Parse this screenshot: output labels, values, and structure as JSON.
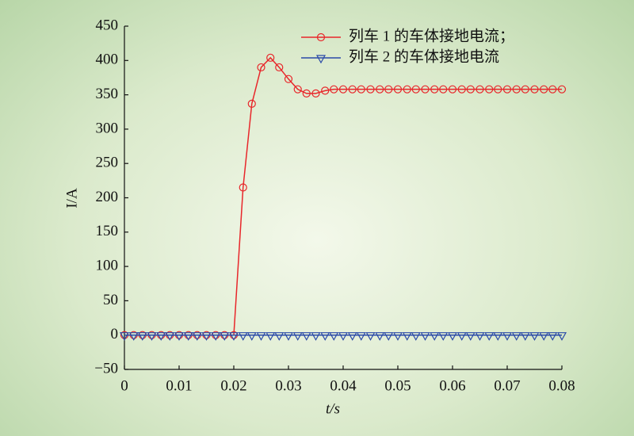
{
  "chart_data": {
    "type": "line",
    "x_label": "t/s",
    "y_label": "I/A",
    "x": [
      0,
      0.0017,
      0.0033,
      0.005,
      0.0067,
      0.0083,
      0.01,
      0.0117,
      0.0133,
      0.015,
      0.0167,
      0.0183,
      0.02,
      0.0217,
      0.0233,
      0.025,
      0.0267,
      0.0283,
      0.03,
      0.0317,
      0.0333,
      0.035,
      0.0367,
      0.0383,
      0.04,
      0.0417,
      0.0433,
      0.045,
      0.0467,
      0.0483,
      0.05,
      0.0517,
      0.0533,
      0.055,
      0.0567,
      0.0583,
      0.06,
      0.0617,
      0.0633,
      0.065,
      0.0667,
      0.0683,
      0.07,
      0.0717,
      0.0733,
      0.075,
      0.0767,
      0.0783,
      0.08
    ],
    "series": [
      {
        "name": "列车 1 的车体接地电流；",
        "color": "#e8262a",
        "marker": "circle",
        "values": [
          0,
          0,
          0,
          0,
          0,
          0,
          0,
          0,
          0,
          0,
          0,
          0,
          0,
          215,
          337,
          390,
          404,
          390,
          373,
          358,
          352,
          352,
          356,
          358,
          358,
          358,
          358,
          358,
          358,
          358,
          358,
          358,
          358,
          358,
          358,
          358,
          358,
          358,
          358,
          358,
          358,
          358,
          358,
          358,
          358,
          358,
          358,
          358,
          358
        ]
      },
      {
        "name": "列车 2 的车体接地电流",
        "color": "#2a4aa8",
        "marker": "triangle-down",
        "values": [
          0,
          0,
          0,
          0,
          0,
          0,
          0,
          0,
          0,
          0,
          0,
          0,
          0,
          0,
          0,
          0,
          0,
          0,
          0,
          0,
          0,
          0,
          0,
          0,
          0,
          0,
          0,
          0,
          0,
          0,
          0,
          0,
          0,
          0,
          0,
          0,
          0,
          0,
          0,
          0,
          0,
          0,
          0,
          0,
          0,
          0,
          0,
          0,
          0
        ]
      }
    ],
    "xlim": [
      0,
      0.08
    ],
    "xticks": [
      0,
      0.01,
      0.02,
      0.03,
      0.04,
      0.05,
      0.06,
      0.07,
      0.08
    ],
    "ylim": [
      -50,
      450
    ],
    "yticks": [
      {
        "value": -50,
        "label": "−50"
      },
      0,
      50,
      100,
      150,
      200,
      250,
      300,
      350,
      400,
      450
    ],
    "legend": "upper-right"
  }
}
